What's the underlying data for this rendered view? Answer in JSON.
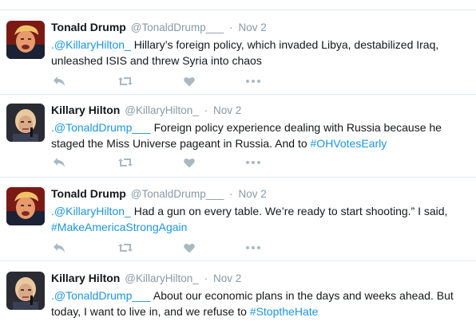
{
  "colors": {
    "link": "#1b95e0",
    "muted": "#8899a6",
    "icon": "#aab8c2",
    "divider": "#e1e8ed"
  },
  "icons": [
    "reply-icon",
    "retweet-icon",
    "like-icon",
    "more-icon"
  ],
  "tweets": [
    {
      "name": "Tonald Drump",
      "handle": "@TonaldDrump___",
      "sep": "·",
      "time": "Nov 2",
      "mention": ".@KillaryHilton_",
      "text": " Hillary’s foreign policy, which invaded Libya, destabilized Iraq, unleashed ISIS and threw Syria into chaos",
      "hashtag": ""
    },
    {
      "name": "Killary Hilton",
      "handle": "@KillaryHilton_",
      "sep": "·",
      "time": "Nov 2",
      "mention": ".@TonaldDrump___",
      "text": " Foreign policy experience dealing with Russia because he staged the Miss Universe pageant in Russia. And to ",
      "hashtag": "#OHVotesEarly"
    },
    {
      "name": "Tonald Drump",
      "handle": "@TonaldDrump___",
      "sep": "·",
      "time": "Nov 2",
      "mention": ".@KillaryHilton_",
      "text": " Had a gun on every table. We’re ready to start shooting.” I said, ",
      "hashtag": "#MakeAmericaStrongAgain"
    },
    {
      "name": "Killary Hilton",
      "handle": "@KillaryHilton_",
      "sep": "·",
      "time": "Nov 2",
      "mention": ".@TonaldDrump___",
      "text": " About our economic plans in the days and weeks ahead. But today, I want to live in, and we refuse to ",
      "hashtag": "#StoptheHate"
    }
  ]
}
